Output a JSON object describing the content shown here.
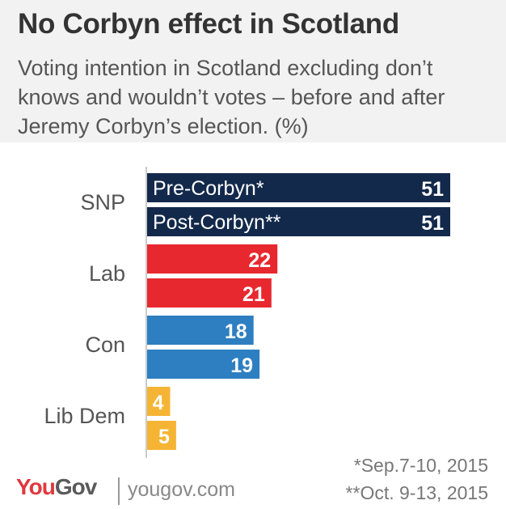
{
  "title": "No Corbyn effect in Scotland",
  "subtitle": "Voting intention in Scotland excluding don’t knows and wouldn’t votes – before and after Jeremy Corbyn’s election. (%)",
  "footnotes": [
    "*Sep.7-10, 2015",
    "**Oct. 9-13, 2015"
  ],
  "brand": {
    "logo_you": "You",
    "logo_gov": "Gov",
    "website": "yougov.com"
  },
  "chart_data": {
    "type": "bar",
    "orientation": "horizontal",
    "categories": [
      "SNP",
      "Lab",
      "Con",
      "Lib Dem"
    ],
    "series": [
      {
        "name": "Pre-Corbyn*",
        "values": [
          51,
          22,
          18,
          4
        ]
      },
      {
        "name": "Post-Corbyn**",
        "values": [
          51,
          21,
          19,
          5
        ]
      }
    ],
    "series_label_placement": "inside-bars-of-first-category",
    "colors": {
      "SNP": "#13294b",
      "Lab": "#e8282f",
      "Con": "#2d7fc1",
      "Lib Dem": "#f5b433"
    },
    "xlim": [
      0,
      51
    ],
    "grid": false,
    "show_x_axis": false
  }
}
